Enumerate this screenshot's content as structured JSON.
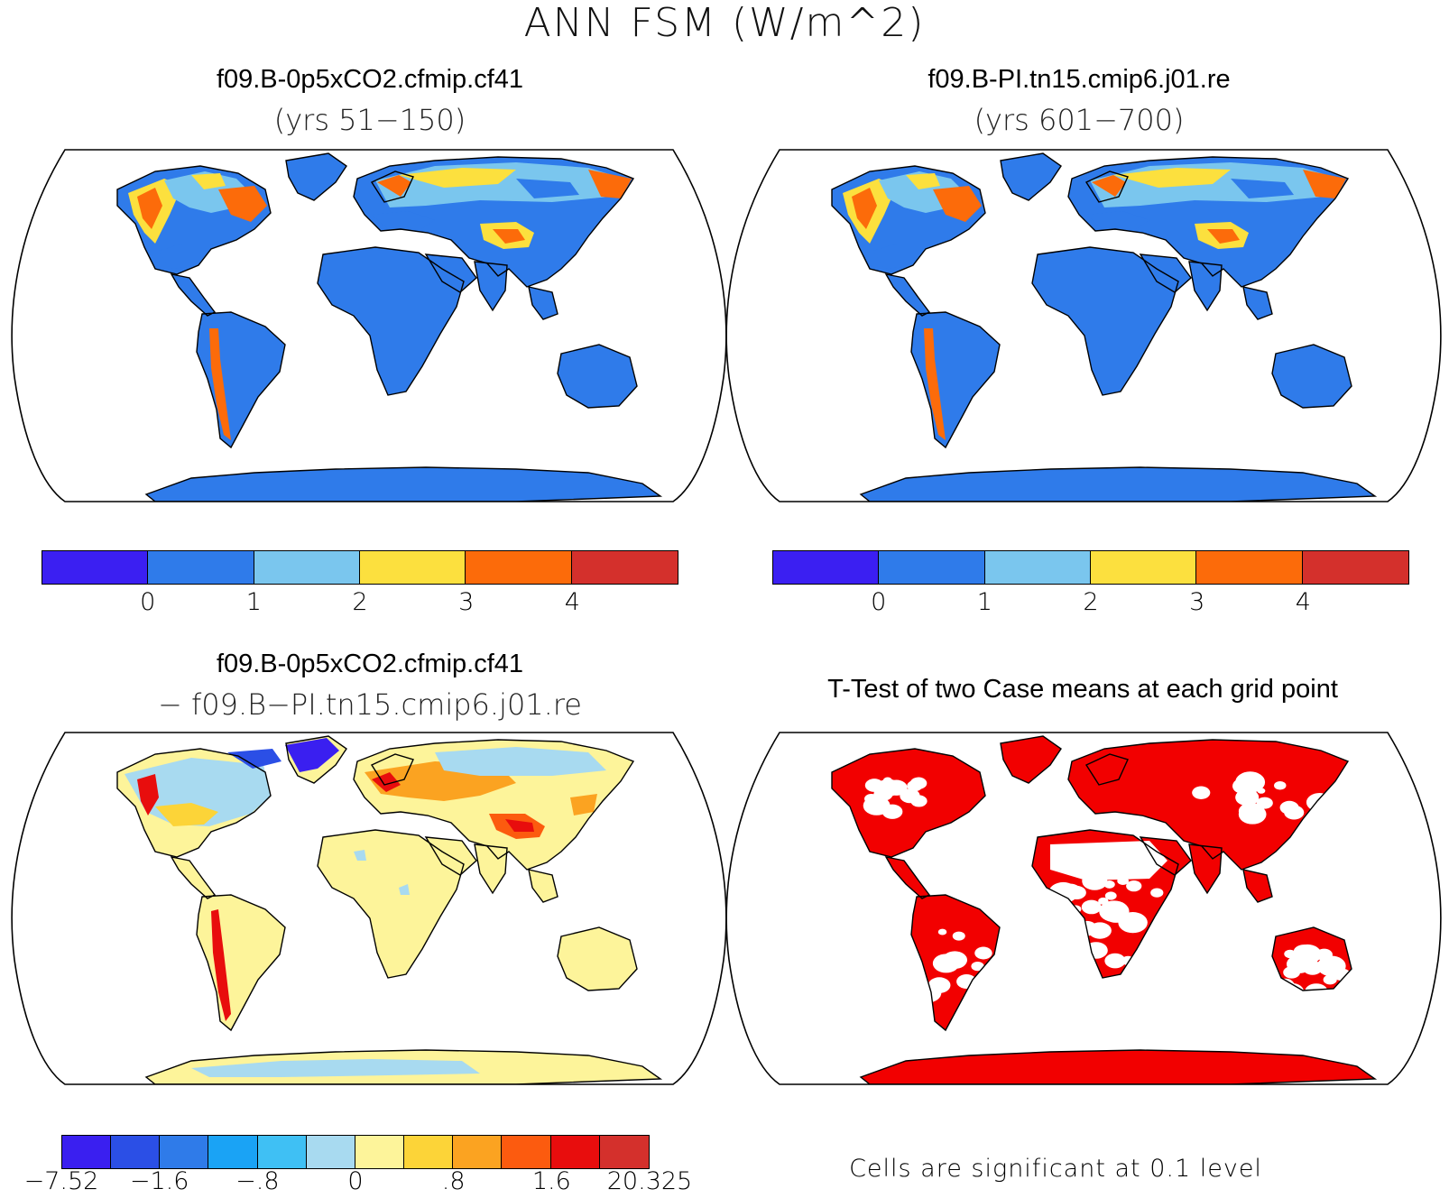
{
  "figure": {
    "title": "ANN FSM (W/m^2)"
  },
  "panels": [
    {
      "title": "f09.B-0p5xCO2.cfmip.cf41",
      "subtitle": "(yrs 51−150)",
      "style": "absolute"
    },
    {
      "title": "f09.B-PI.tn15.cmip6.j01.re",
      "subtitle": "(yrs 601−700)",
      "style": "absolute"
    },
    {
      "title": "f09.B-0p5xCO2.cfmip.cf41",
      "subtitle": "− f09.B−PI.tn15.cmip6.j01.re",
      "style": "difference"
    },
    {
      "title": "T-Test of two Case means at each grid point",
      "subtitle": "",
      "style": "ttest"
    }
  ],
  "colorbars": {
    "absolute": {
      "colors": [
        "#3b1ff2",
        "#2f7bea",
        "#7ac6ee",
        "#fce03e",
        "#fc6b0a",
        "#d4302c"
      ],
      "ticks": [
        "0",
        "1",
        "2",
        "3",
        "4"
      ]
    },
    "difference": {
      "colors": [
        "#3a1ff0",
        "#2b4fe6",
        "#2f7be9",
        "#1aa3f5",
        "#3fc0f4",
        "#a8daf0",
        "#fdf49a",
        "#fcd438",
        "#fba321",
        "#fc5b0f",
        "#e80d0d",
        "#d4302c"
      ],
      "ticks": [
        "−7.52",
        "−1.6",
        "−.8",
        "0",
        ".8",
        "1.6",
        "20.325"
      ]
    }
  },
  "ttest_note": "Cells are significant at 0.1 level",
  "map_colors": {
    "ocean": "#ffffff",
    "land_base_absolute": "#2f7bea",
    "land_base_difference": "#fdf49a",
    "significant": "#f20000"
  }
}
